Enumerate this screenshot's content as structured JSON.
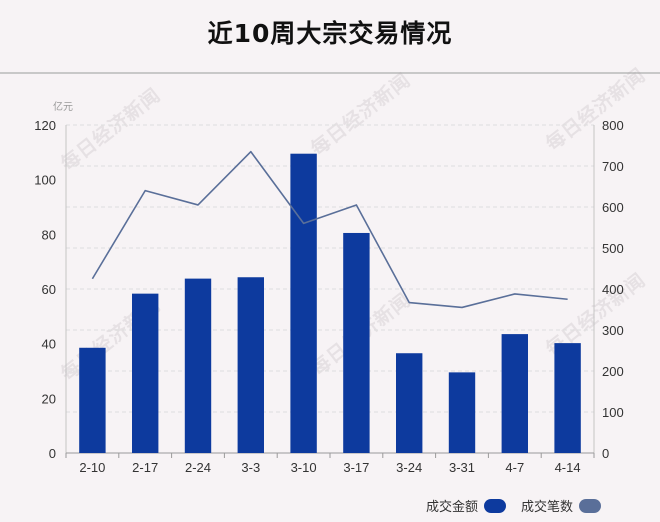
{
  "title": "近10周大宗交易情况",
  "watermark_text": "每日经济新闻",
  "chart_data": {
    "type": "bar",
    "categories": [
      "2-10",
      "2-17",
      "2-24",
      "3-3",
      "3-10",
      "3-17",
      "3-24",
      "3-31",
      "4-7",
      "4-14"
    ],
    "series": [
      {
        "name": "成交金额",
        "type": "bar",
        "axis": "left",
        "color": "#0d3a9e",
        "values": [
          38.5,
          58.3,
          63.8,
          64.3,
          109.5,
          80.5,
          36.5,
          29.5,
          43.5,
          40.2
        ]
      },
      {
        "name": "成交笔数",
        "type": "line",
        "axis": "right",
        "color": "#5a6f99",
        "values": [
          425,
          640,
          605,
          735,
          560,
          605,
          367,
          355,
          388,
          375
        ]
      }
    ],
    "yunit": "亿元",
    "ylim": [
      0,
      120
    ],
    "yticks": [
      0,
      20,
      40,
      60,
      80,
      100,
      120
    ],
    "y2lim": [
      0,
      800
    ],
    "y2ticks": [
      0,
      100,
      200,
      300,
      400,
      500,
      600,
      700,
      800
    ],
    "grid": true,
    "legend_position": "bottom-right"
  }
}
